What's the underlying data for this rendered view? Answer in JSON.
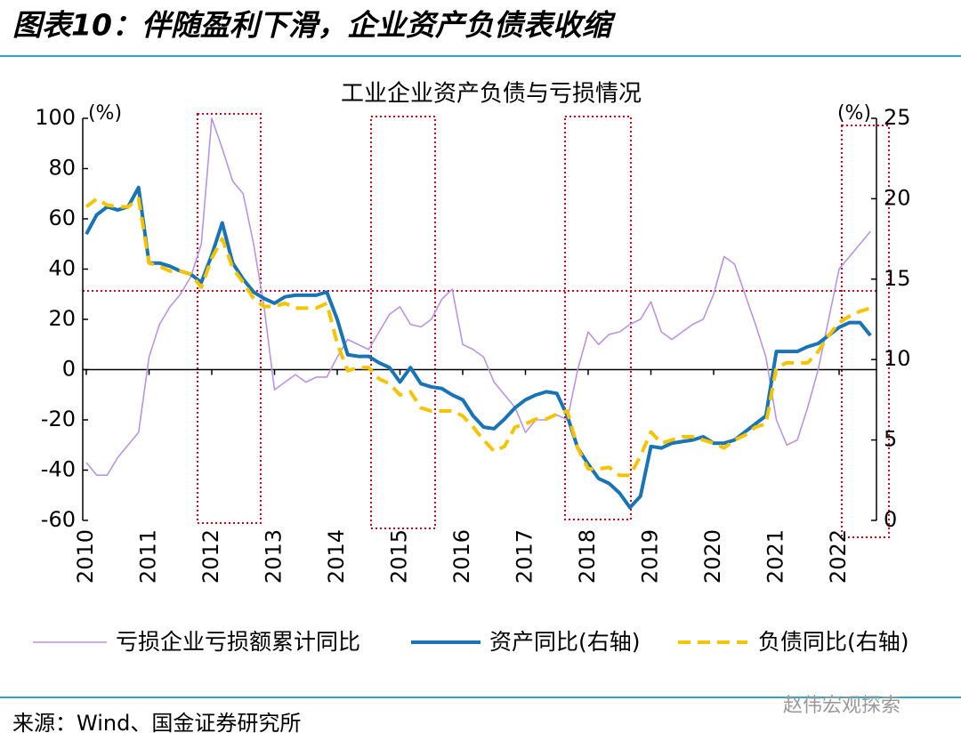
{
  "header": {
    "title": "图表10：伴随盈利下滑，企业资产负债表收缩"
  },
  "chart_data": {
    "type": "line",
    "title": "工业企业资产负债与亏损情况",
    "y_label": "(%)",
    "y2_label": "(%)",
    "categories": [
      "2010",
      null,
      null,
      null,
      null,
      null,
      "2011",
      null,
      null,
      null,
      null,
      null,
      "2012",
      null,
      null,
      null,
      null,
      null,
      "2013",
      null,
      null,
      null,
      null,
      null,
      "2014",
      null,
      null,
      null,
      null,
      null,
      "2015",
      null,
      null,
      null,
      null,
      null,
      "2016",
      null,
      null,
      null,
      null,
      null,
      "2017",
      null,
      null,
      null,
      null,
      null,
      "2018",
      null,
      null,
      null,
      null,
      null,
      "2019",
      null,
      null,
      null,
      null,
      null,
      "2020",
      null,
      null,
      null,
      null,
      null,
      "2021",
      null,
      null,
      null,
      null,
      null,
      "2022",
      null,
      null,
      null
    ],
    "ylim": [
      -60,
      100
    ],
    "yticks": [
      -60,
      -40,
      -20,
      0,
      20,
      40,
      60,
      80,
      100
    ],
    "y2lim": [
      0,
      25
    ],
    "y2ticks": [
      0,
      5,
      10,
      15,
      20,
      25
    ],
    "legend": "bottom",
    "series": [
      {
        "name": "亏损企业亏损额累计同比",
        "color": "#b994e2",
        "style": "solid",
        "width": 1.6,
        "axis": "y",
        "values": [
          -37,
          -42,
          -42,
          -35,
          -30,
          -25,
          5,
          18,
          25,
          30,
          37,
          50,
          100,
          88,
          75,
          70,
          50,
          25,
          -8,
          -5,
          -2,
          -5,
          -3,
          -3,
          5,
          12,
          10,
          8,
          15,
          22,
          25,
          18,
          17,
          20,
          28,
          32,
          10,
          8,
          5,
          -5,
          -10,
          -15,
          -25,
          -20,
          -20,
          -18,
          -20,
          0,
          15,
          10,
          14,
          15,
          18,
          20,
          27,
          15,
          12,
          15,
          18,
          20,
          30,
          45,
          42,
          30,
          18,
          5,
          -20,
          -30,
          -28,
          -15,
          0,
          20,
          40,
          45,
          50,
          55
        ]
      },
      {
        "name": "资产同比(右轴)",
        "color": "#1874b4",
        "style": "solid",
        "width": 4,
        "axis": "y2",
        "values": [
          17.8,
          19.0,
          19.5,
          19.3,
          19.5,
          20.7,
          16.0,
          16.0,
          15.8,
          15.5,
          15.3,
          14.8,
          16.5,
          18.5,
          16.0,
          15.0,
          14.2,
          13.8,
          13.5,
          13.9,
          14.0,
          14.0,
          14.0,
          14.2,
          12.5,
          10.3,
          10.2,
          10.2,
          9.8,
          9.5,
          8.6,
          9.5,
          8.5,
          8.3,
          8.2,
          7.8,
          7.5,
          6.5,
          5.8,
          5.7,
          6.3,
          7.0,
          7.5,
          7.8,
          8.0,
          7.9,
          6.5,
          4.5,
          3.5,
          2.6,
          2.3,
          1.7,
          0.8,
          1.5,
          4.6,
          4.5,
          4.8,
          4.9,
          5.0,
          5.2,
          4.8,
          4.8,
          5.0,
          5.5,
          6.0,
          6.5,
          10.5,
          10.5,
          10.5,
          10.8,
          11.0,
          11.5,
          12.0,
          12.3,
          12.3,
          11.5
        ]
      },
      {
        "name": "负债同比(右轴)",
        "color": "#f5c400",
        "style": "dashed",
        "width": 4,
        "axis": "y2",
        "values": [
          19.5,
          20.0,
          19.6,
          19.5,
          19.5,
          20.0,
          16.0,
          15.8,
          15.5,
          15.5,
          15.3,
          14.5,
          16.3,
          17.5,
          15.7,
          14.8,
          13.8,
          13.3,
          13.3,
          13.5,
          13.2,
          13.2,
          13.2,
          13.5,
          11.0,
          9.3,
          9.5,
          9.5,
          8.8,
          8.5,
          7.8,
          8.0,
          7.0,
          6.8,
          6.8,
          6.8,
          6.5,
          5.8,
          5.0,
          4.3,
          4.6,
          5.8,
          6.0,
          6.3,
          6.3,
          6.6,
          6.8,
          4.5,
          3.2,
          3.2,
          3.3,
          2.8,
          2.8,
          4.0,
          5.5,
          4.8,
          5.0,
          5.2,
          5.2,
          5.0,
          4.8,
          4.5,
          5.0,
          5.3,
          5.8,
          6.0,
          9.5,
          9.8,
          9.8,
          9.8,
          10.5,
          11.5,
          12.3,
          12.7,
          13.0,
          13.2
        ]
      }
    ]
  },
  "footer": {
    "source": "来源：Wind、国金证券研究所",
    "watermark": "赵伟宏观探索"
  }
}
